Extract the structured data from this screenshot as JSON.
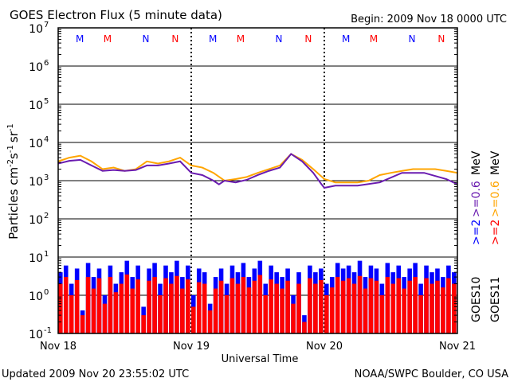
{
  "chart_data": {
    "type": "line",
    "title": "GOES Electron Flux (5 minute data)",
    "begin": "Begin: 2009 Nov 18 0000 UTC",
    "ylabel": {
      "base": "Particles cm",
      "e1": "-2",
      "s": "s",
      "e2": "-1",
      "sr": "sr",
      "e3": "-1"
    },
    "xlabel": "Universal Time",
    "x_ticks": [
      "Nov 18",
      "Nov 19",
      "Nov 20",
      "Nov 21"
    ],
    "xlim_hours": [
      0,
      72
    ],
    "ylim": [
      0.1,
      10000000
    ],
    "y_ticks": [
      {
        "b": "10",
        "e": "7"
      },
      {
        "b": "10",
        "e": "6"
      },
      {
        "b": "10",
        "e": "5"
      },
      {
        "b": "10",
        "e": "4"
      },
      {
        "b": "10",
        "e": "3"
      },
      {
        "b": "10",
        "e": "2"
      },
      {
        "b": "10",
        "e": "1"
      },
      {
        "b": "10",
        "e": "0"
      },
      {
        "b": "10",
        "e": "-1"
      }
    ],
    "threshold": 1000,
    "markers": [
      {
        "label": "M",
        "hour": 3.9,
        "color": "#0000ff"
      },
      {
        "label": "M",
        "hour": 8.9,
        "color": "#ff0000"
      },
      {
        "label": "N",
        "hour": 15.8,
        "color": "#0000ff"
      },
      {
        "label": "N",
        "hour": 21.1,
        "color": "#ff0000"
      },
      {
        "label": "M",
        "hour": 27.9,
        "color": "#0000ff"
      },
      {
        "label": "M",
        "hour": 32.9,
        "color": "#ff0000"
      },
      {
        "label": "N",
        "hour": 39.8,
        "color": "#0000ff"
      },
      {
        "label": "N",
        "hour": 45.1,
        "color": "#ff0000"
      },
      {
        "label": "M",
        "hour": 51.9,
        "color": "#0000ff"
      },
      {
        "label": "M",
        "hour": 56.9,
        "color": "#ff0000"
      },
      {
        "label": "N",
        "hour": 63.8,
        "color": "#0000ff"
      },
      {
        "label": "N",
        "hour": 69.1,
        "color": "#ff0000"
      }
    ],
    "series": [
      {
        "name": ">=0.6 MeV GOES11",
        "color": "#ffa500",
        "type": "line",
        "hours": [
          0,
          2,
          4,
          6,
          8,
          10,
          12,
          14,
          16,
          18,
          20,
          22,
          24,
          26,
          28,
          30,
          32,
          34,
          36,
          38,
          40,
          42,
          44,
          46,
          48,
          50,
          52,
          54,
          56,
          58,
          60,
          62,
          64,
          66,
          68,
          70,
          72
        ],
        "values": [
          3200,
          4000,
          4500,
          3200,
          2000,
          2200,
          1800,
          2000,
          3200,
          2800,
          3200,
          4000,
          2500,
          2200,
          1600,
          1000,
          1100,
          1250,
          1600,
          2000,
          2500,
          5000,
          3500,
          2000,
          1100,
          900,
          900,
          900,
          1000,
          1400,
          1600,
          1800,
          2000,
          2000,
          2000,
          1800,
          1600
        ]
      },
      {
        "name": ">=0.6 MeV GOES10",
        "color": "#6a1bb0",
        "type": "line",
        "hours": [
          0,
          2,
          4,
          6,
          8,
          10,
          12,
          14,
          16,
          18,
          20,
          22,
          24,
          26,
          28,
          29,
          30,
          32,
          34,
          36,
          38,
          40,
          42,
          44,
          46,
          47.5,
          48,
          50,
          54,
          58,
          62,
          66,
          70,
          72
        ],
        "values": [
          2800,
          3300,
          3500,
          2500,
          1800,
          1900,
          1800,
          1900,
          2500,
          2500,
          2800,
          3200,
          1600,
          1400,
          1000,
          800,
          1000,
          900,
          1050,
          1400,
          1800,
          2200,
          5000,
          3200,
          1600,
          800,
          650,
          740,
          740,
          900,
          1600,
          1600,
          1100,
          800
        ]
      },
      {
        "name": ">=2 MeV GOES10",
        "color": "#0000ff",
        "type": "bar",
        "values": [
          4,
          6,
          2,
          5,
          0.4,
          7,
          3,
          5,
          1,
          6,
          2,
          4,
          8,
          3,
          6,
          0.5,
          5,
          7,
          2,
          6,
          4,
          8,
          3,
          6,
          1,
          5,
          4,
          0.6,
          3,
          5,
          2,
          6,
          4,
          7,
          3,
          5,
          8,
          2,
          6,
          4,
          3,
          5,
          1,
          4,
          0.3,
          6,
          4,
          5,
          2,
          3,
          7,
          5,
          6,
          4,
          8,
          3,
          6,
          5,
          2,
          7,
          4,
          6,
          3,
          5,
          7,
          2,
          6,
          4,
          5,
          3,
          6,
          4
        ]
      },
      {
        "name": ">=2 MeV GOES11",
        "color": "#ff0000",
        "type": "bar",
        "values": [
          2,
          3,
          1,
          2.5,
          0.3,
          3,
          1.5,
          2.8,
          0.6,
          3,
          1.2,
          2,
          3.5,
          1.5,
          2.6,
          0.3,
          2.4,
          3,
          1,
          2.8,
          2,
          3.2,
          1.5,
          2.6,
          0.5,
          2.2,
          2,
          0.4,
          1.5,
          2.4,
          1,
          2.8,
          2,
          3,
          1.6,
          2.4,
          3.4,
          1,
          2.6,
          2,
          1.5,
          2.4,
          0.6,
          2,
          0.2,
          2.8,
          2,
          2.5,
          1,
          1.6,
          3,
          2.4,
          2.8,
          2,
          3.2,
          1.5,
          2.8,
          2.4,
          1,
          3,
          2,
          2.8,
          1.5,
          2.4,
          3,
          1,
          2.8,
          2,
          2.4,
          1.6,
          2.8,
          2
        ]
      }
    ],
    "right_labels": {
      "col1": [
        {
          "text": ">=2",
          "color": "#0000ff"
        },
        {
          "text": ">=0.6",
          "color": "#6a1bb0"
        },
        {
          "text": "MeV",
          "color": "#000000"
        }
      ],
      "col2": [
        {
          "text": ">=2",
          "color": "#ff0000"
        },
        {
          "text": ">=0.6",
          "color": "#ffa500"
        },
        {
          "text": "MeV",
          "color": "#000000"
        }
      ],
      "sat1": "GOES10",
      "sat2": "GOES11"
    }
  },
  "footer": {
    "updated": "Updated 2009 Nov 20 23:55:02 UTC",
    "credit": "NOAA/SWPC Boulder, CO USA"
  }
}
